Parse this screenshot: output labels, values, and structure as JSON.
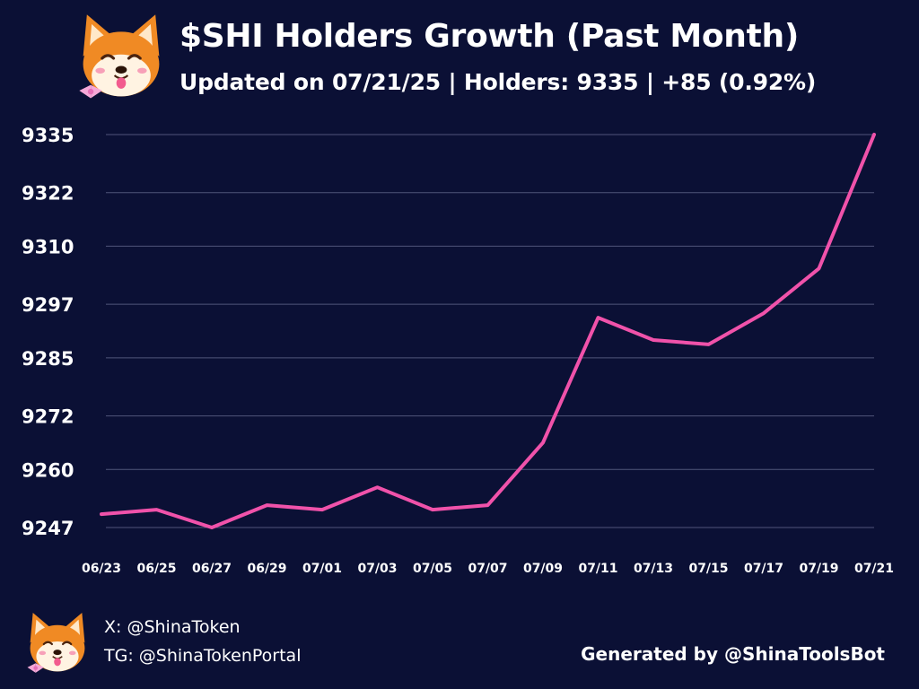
{
  "header": {
    "title": "$SHI Holders Growth (Past Month)",
    "subtitle": "Updated on 07/21/25 | Holders: 9335 | +85 (0.92%)"
  },
  "logo": {
    "icon": "shiba-inu-icon"
  },
  "colors": {
    "background": "#0b1035",
    "line": "#f052aa",
    "grid": "#50557a",
    "text": "#ffffff"
  },
  "chart_data": {
    "type": "line",
    "title": "$SHI Holders Growth (Past Month)",
    "xlabel": "",
    "ylabel": "",
    "yticks": [
      9247,
      9260,
      9272,
      9285,
      9297,
      9310,
      9322,
      9335
    ],
    "ylim": [
      9247,
      9335
    ],
    "xtick_labels": [
      "06/23",
      "06/25",
      "06/27",
      "06/29",
      "07/01",
      "07/03",
      "07/05",
      "07/07",
      "07/09",
      "07/11",
      "07/13",
      "07/15",
      "07/17",
      "07/19",
      "07/21"
    ],
    "grid": true,
    "series": [
      {
        "x": [
          "06/23",
          "06/25",
          "06/27",
          "06/29",
          "07/01",
          "07/03",
          "07/05",
          "07/07",
          "07/09",
          "07/11",
          "07/13",
          "07/15",
          "07/17",
          "07/19",
          "07/21"
        ],
        "values": [
          9250,
          9251,
          9247,
          9252,
          9251,
          9256,
          9251,
          9252,
          9266,
          9294,
          9289,
          9288,
          9295,
          9305,
          9335
        ]
      }
    ]
  },
  "footer": {
    "x_handle": "X: @ShinaToken",
    "tg_handle": "TG: @ShinaTokenPortal",
    "generated_by": "Generated by @ShinaToolsBot"
  }
}
